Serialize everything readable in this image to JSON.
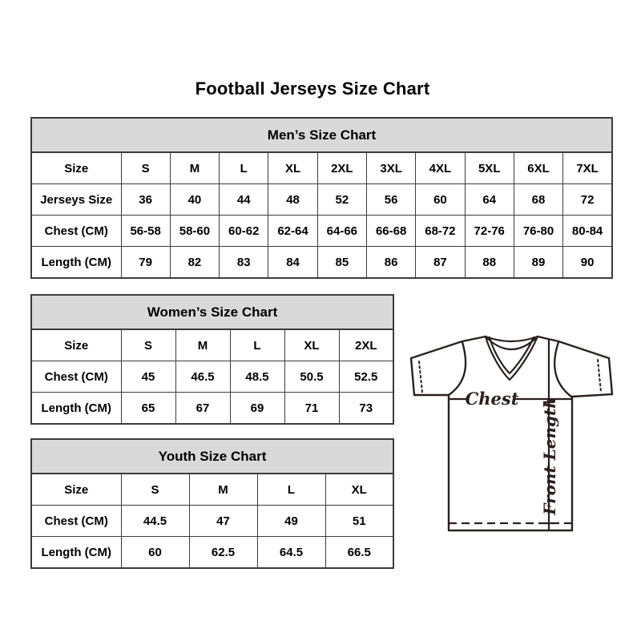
{
  "title": "Football Jerseys Size Chart",
  "colors": {
    "table_header_bg": "#d9d9d9",
    "table_border": "#3b3b3b",
    "text": "#000000",
    "jersey_line": "#2a211e"
  },
  "tables": [
    {
      "id": "mens",
      "title": "Men’s Size Chart",
      "col_headers": [
        "Size",
        "S",
        "M",
        "L",
        "XL",
        "2XL",
        "3XL",
        "4XL",
        "5XL",
        "6XL",
        "7XL"
      ],
      "rows": [
        {
          "label": "Jerseys Size",
          "values": [
            "36",
            "40",
            "44",
            "48",
            "52",
            "56",
            "60",
            "64",
            "68",
            "72"
          ]
        },
        {
          "label": "Chest (CM)",
          "values": [
            "56-58",
            "58-60",
            "60-62",
            "62-64",
            "64-66",
            "66-68",
            "68-72",
            "72-76",
            "76-80",
            "80-84"
          ]
        },
        {
          "label": "Length (CM)",
          "values": [
            "79",
            "82",
            "83",
            "84",
            "85",
            "86",
            "87",
            "88",
            "89",
            "90"
          ]
        }
      ]
    },
    {
      "id": "womens",
      "title": "Women’s Size Chart",
      "col_headers": [
        "Size",
        "S",
        "M",
        "L",
        "XL",
        "2XL"
      ],
      "rows": [
        {
          "label": "Chest (CM)",
          "values": [
            "45",
            "46.5",
            "48.5",
            "50.5",
            "52.5"
          ]
        },
        {
          "label": "Length (CM)",
          "values": [
            "65",
            "67",
            "69",
            "71",
            "73"
          ]
        }
      ]
    },
    {
      "id": "youth",
      "title": "Youth Size Chart",
      "col_headers": [
        "Size",
        "S",
        "M",
        "L",
        "XL"
      ],
      "rows": [
        {
          "label": "Chest (CM)",
          "values": [
            "44.5",
            "47",
            "49",
            "51"
          ]
        },
        {
          "label": "Length (CM)",
          "values": [
            "60",
            "62.5",
            "64.5",
            "66.5"
          ]
        }
      ]
    }
  ],
  "jersey_diagram": {
    "chest_label": "Chest",
    "front_length_label": "Front Length"
  }
}
